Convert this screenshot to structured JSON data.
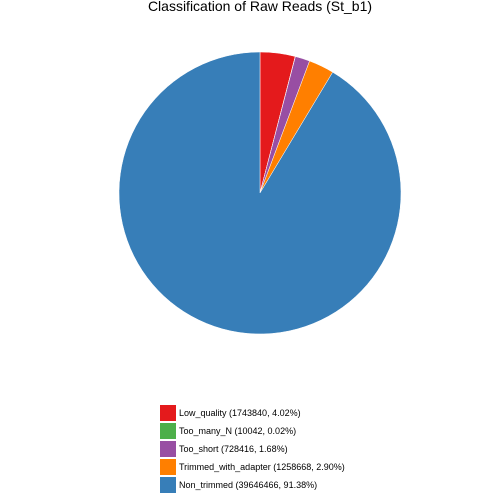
{
  "chart_data": {
    "type": "pie",
    "title": "Classification of Raw Reads (St_b1)",
    "start_angle": "12 o'clock",
    "direction": "clockwise",
    "legend_position": "bottom-center",
    "slices": [
      {
        "name": "Low_quality",
        "value": 1743840,
        "percent": 4.02,
        "color": "#e41a1c",
        "legend_label": "Low_quality (1743840, 4.02%)"
      },
      {
        "name": "Too_many_N",
        "value": 10042,
        "percent": 0.02,
        "color": "#4daf4a",
        "legend_label": "Too_many_N (10042, 0.02%)"
      },
      {
        "name": "Too_short",
        "value": 728416,
        "percent": 1.68,
        "color": "#984ea3",
        "legend_label": "Too_short (728416, 1.68%)"
      },
      {
        "name": "Trimmed_with_adapter",
        "value": 1258668,
        "percent": 2.9,
        "color": "#ff7f00",
        "legend_label": "Trimmed_with_adapter (1258668, 2.90%)"
      },
      {
        "name": "Non_trimmed",
        "value": 39646466,
        "percent": 91.38,
        "color": "#377eb8",
        "legend_label": "Non_trimmed (39646466, 91.38%)"
      }
    ]
  }
}
